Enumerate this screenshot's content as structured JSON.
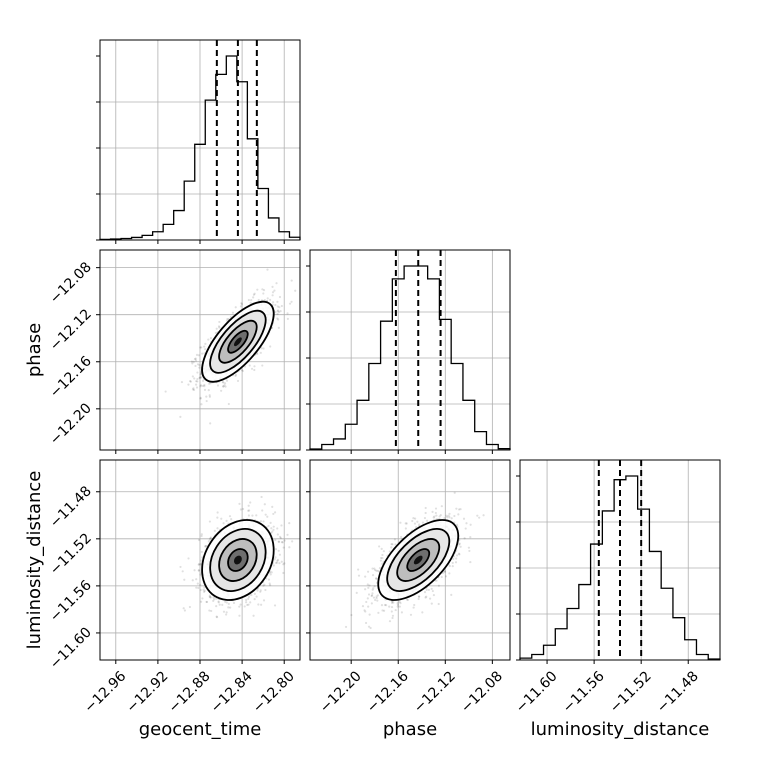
{
  "chart_data": {
    "type": "corner",
    "parameters": [
      "geocent_time",
      "phase",
      "luminosity_distance"
    ],
    "axis_labels": {
      "geocent_time": "geocent_time",
      "phase": "phase",
      "luminosity_distance": "luminosity_distance"
    },
    "ticks": {
      "geocent_time": [
        "−12.96",
        "−12.92",
        "−12.88",
        "−12.84",
        "−12.80"
      ],
      "phase": [
        "−12.20",
        "−12.16",
        "−12.12",
        "−12.08"
      ],
      "luminosity_distance": [
        "−11.60",
        "−11.56",
        "−11.52",
        "−11.48"
      ]
    },
    "tick_values": {
      "geocent_time": [
        -12.96,
        -12.92,
        -12.88,
        -12.84,
        -12.8
      ],
      "phase": [
        -12.2,
        -12.16,
        -12.12,
        -12.08
      ],
      "luminosity_distance": [
        -11.6,
        -11.56,
        -11.52,
        -11.48
      ]
    },
    "ranges": {
      "geocent_time": [
        -12.975,
        -12.785
      ],
      "phase": [
        -12.235,
        -12.065
      ],
      "luminosity_distance": [
        -11.623,
        -11.453
      ]
    },
    "quantiles": {
      "geocent_time": [
        -12.864,
        -12.844,
        -12.826
      ],
      "phase": [
        -12.162,
        -12.143,
        -12.124
      ],
      "luminosity_distance": [
        -11.556,
        -11.538,
        -11.52
      ]
    },
    "histograms": {
      "geocent_time": [
        0.003,
        0.005,
        0.008,
        0.014,
        0.025,
        0.045,
        0.085,
        0.16,
        0.32,
        0.52,
        0.76,
        0.9,
        1.0,
        0.86,
        0.55,
        0.28,
        0.12,
        0.045,
        0.015
      ],
      "phase": [
        0.005,
        0.03,
        0.06,
        0.14,
        0.27,
        0.47,
        0.7,
        0.93,
        1.0,
        1.0,
        0.93,
        0.71,
        0.47,
        0.27,
        0.1,
        0.03,
        0.007
      ],
      "luminosity_distance": [
        0.01,
        0.03,
        0.08,
        0.17,
        0.28,
        0.41,
        0.63,
        0.81,
        0.98,
        1.0,
        0.82,
        0.59,
        0.39,
        0.23,
        0.11,
        0.03,
        0.005
      ]
    },
    "joint_2d": [
      {
        "x": "geocent_time",
        "y": "phase",
        "mean": [
          -12.844,
          -12.143
        ],
        "std": [
          0.017,
          0.017
        ],
        "corr": 0.7
      },
      {
        "x": "geocent_time",
        "y": "luminosity_distance",
        "mean": [
          -12.844,
          -11.538
        ],
        "std": [
          0.017,
          0.017
        ],
        "corr": 0.25
      },
      {
        "x": "phase",
        "y": "luminosity_distance",
        "mean": [
          -12.143,
          -11.538
        ],
        "std": [
          0.017,
          0.017
        ],
        "corr": 0.6
      }
    ],
    "grid": true
  }
}
